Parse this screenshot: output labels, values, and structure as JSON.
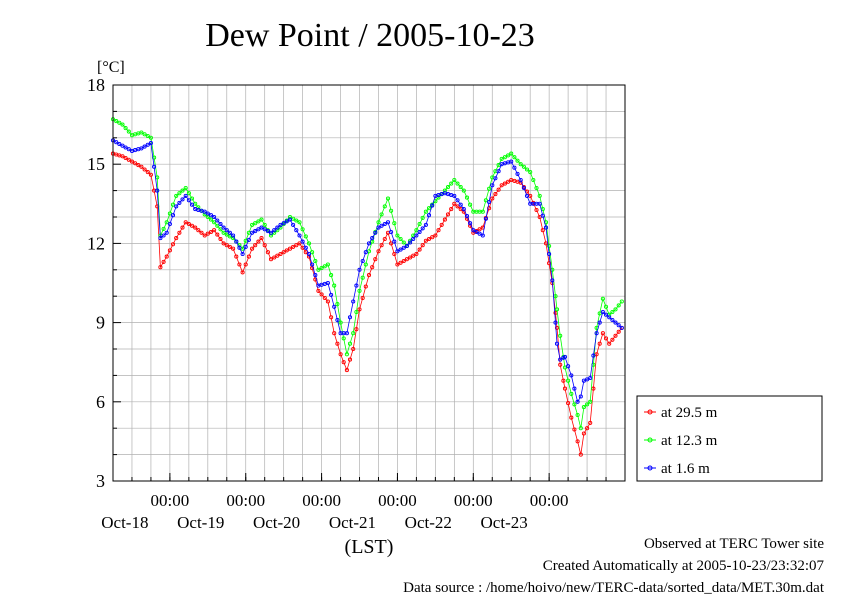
{
  "chart_data": {
    "type": "line",
    "title": "Dew Point / 2005-10-23",
    "ylabel": "[°C]",
    "xlabel": "(LST)",
    "ylim": [
      3,
      18
    ],
    "yticks": [
      3,
      6,
      9,
      12,
      15,
      18
    ],
    "xlim": [
      "2005-10-17T06:00",
      "2005-10-23T24:00"
    ],
    "time_ticks": [
      {
        "time": "2005-10-18T00:00",
        "label": "00:00",
        "day": "Oct-18"
      },
      {
        "time": "2005-10-19T00:00",
        "label": "00:00",
        "day": "Oct-19"
      },
      {
        "time": "2005-10-20T00:00",
        "label": "00:00",
        "day": "Oct-20"
      },
      {
        "time": "2005-10-21T00:00",
        "label": "00:00",
        "day": "Oct-21"
      },
      {
        "time": "2005-10-22T00:00",
        "label": "00:00",
        "day": "Oct-22"
      },
      {
        "time": "2005-10-23T00:00",
        "label": "00:00",
        "day": "Oct-23"
      }
    ],
    "grid": true,
    "legend_position": "right",
    "series": [
      {
        "name": "at 29.5 m",
        "color": "#ff0000",
        "points": [
          [
            "2005-10-17T06:00",
            15.4
          ],
          [
            "2005-10-17T09:00",
            15.3
          ],
          [
            "2005-10-17T12:00",
            15.1
          ],
          [
            "2005-10-17T15:00",
            14.9
          ],
          [
            "2005-10-17T18:00",
            14.6
          ],
          [
            "2005-10-17T20:00",
            13.4
          ],
          [
            "2005-10-17T21:00",
            11.1
          ],
          [
            "2005-10-17T23:00",
            11.5
          ],
          [
            "2005-10-18T02:00",
            12.2
          ],
          [
            "2005-10-18T05:00",
            12.8
          ],
          [
            "2005-10-18T08:00",
            12.6
          ],
          [
            "2005-10-18T11:00",
            12.3
          ],
          [
            "2005-10-18T14:00",
            12.5
          ],
          [
            "2005-10-18T17:00",
            12.0
          ],
          [
            "2005-10-18T20:00",
            11.8
          ],
          [
            "2005-10-18T23:00",
            10.9
          ],
          [
            "2005-10-19T02:00",
            11.8
          ],
          [
            "2005-10-19T05:00",
            12.2
          ],
          [
            "2005-10-19T08:00",
            11.4
          ],
          [
            "2005-10-19T11:00",
            11.6
          ],
          [
            "2005-10-19T14:00",
            11.8
          ],
          [
            "2005-10-19T17:00",
            12.0
          ],
          [
            "2005-10-19T20:00",
            11.5
          ],
          [
            "2005-10-19T23:00",
            10.2
          ],
          [
            "2005-10-20T02:00",
            9.8
          ],
          [
            "2005-10-20T04:00",
            8.6
          ],
          [
            "2005-10-20T06:00",
            7.8
          ],
          [
            "2005-10-20T08:00",
            7.2
          ],
          [
            "2005-10-20T10:00",
            8.0
          ],
          [
            "2005-10-20T12:00",
            9.5
          ],
          [
            "2005-10-20T15:00",
            10.8
          ],
          [
            "2005-10-20T18:00",
            11.7
          ],
          [
            "2005-10-20T21:00",
            12.4
          ],
          [
            "2005-10-21T00:00",
            11.2
          ],
          [
            "2005-10-21T03:00",
            11.4
          ],
          [
            "2005-10-21T06:00",
            11.6
          ],
          [
            "2005-10-21T09:00",
            12.1
          ],
          [
            "2005-10-21T12:00",
            12.3
          ],
          [
            "2005-10-21T15:00",
            12.9
          ],
          [
            "2005-10-21T18:00",
            13.5
          ],
          [
            "2005-10-21T21:00",
            13.2
          ],
          [
            "2005-10-22T00:00",
            12.4
          ],
          [
            "2005-10-22T03:00",
            12.6
          ],
          [
            "2005-10-22T06:00",
            13.7
          ],
          [
            "2005-10-22T09:00",
            14.2
          ],
          [
            "2005-10-22T12:00",
            14.4
          ],
          [
            "2005-10-22T15:00",
            14.3
          ],
          [
            "2005-10-22T18:00",
            13.8
          ],
          [
            "2005-10-22T21:00",
            13.0
          ],
          [
            "2005-10-22T23:00",
            12.0
          ],
          [
            "2005-10-23T01:00",
            10.5
          ],
          [
            "2005-10-23T02:30",
            8.8
          ],
          [
            "2005-10-23T03:30",
            7.4
          ],
          [
            "2005-10-23T05:00",
            6.5
          ],
          [
            "2005-10-23T07:00",
            5.4
          ],
          [
            "2005-10-23T09:00",
            4.5
          ],
          [
            "2005-10-23T10:00",
            4.0
          ],
          [
            "2005-10-23T11:00",
            4.8
          ],
          [
            "2005-10-23T13:00",
            5.2
          ],
          [
            "2005-10-23T15:00",
            7.8
          ],
          [
            "2005-10-23T17:00",
            8.6
          ],
          [
            "2005-10-23T19:00",
            8.2
          ],
          [
            "2005-10-23T21:00",
            8.5
          ],
          [
            "2005-10-23T23:00",
            8.8
          ]
        ]
      },
      {
        "name": "at 12.3 m",
        "color": "#00ff00",
        "points": [
          [
            "2005-10-17T06:00",
            16.7
          ],
          [
            "2005-10-17T09:00",
            16.5
          ],
          [
            "2005-10-17T12:00",
            16.1
          ],
          [
            "2005-10-17T15:00",
            16.2
          ],
          [
            "2005-10-17T18:00",
            16.0
          ],
          [
            "2005-10-17T20:00",
            14.5
          ],
          [
            "2005-10-17T21:00",
            12.3
          ],
          [
            "2005-10-17T23:00",
            12.8
          ],
          [
            "2005-10-18T02:00",
            13.8
          ],
          [
            "2005-10-18T05:00",
            14.1
          ],
          [
            "2005-10-18T08:00",
            13.5
          ],
          [
            "2005-10-18T11:00",
            13.1
          ],
          [
            "2005-10-18T14:00",
            12.8
          ],
          [
            "2005-10-18T17:00",
            12.4
          ],
          [
            "2005-10-18T20:00",
            12.2
          ],
          [
            "2005-10-18T23:00",
            11.8
          ],
          [
            "2005-10-19T02:00",
            12.7
          ],
          [
            "2005-10-19T05:00",
            12.9
          ],
          [
            "2005-10-19T08:00",
            12.3
          ],
          [
            "2005-10-19T11:00",
            12.6
          ],
          [
            "2005-10-19T14:00",
            13.0
          ],
          [
            "2005-10-19T17:00",
            12.8
          ],
          [
            "2005-10-19T20:00",
            12.0
          ],
          [
            "2005-10-19T23:00",
            11.0
          ],
          [
            "2005-10-20T02:00",
            11.2
          ],
          [
            "2005-10-20T04:00",
            10.4
          ],
          [
            "2005-10-20T06:00",
            9.0
          ],
          [
            "2005-10-20T08:00",
            7.8
          ],
          [
            "2005-10-20T10:00",
            8.6
          ],
          [
            "2005-10-20T12:00",
            10.2
          ],
          [
            "2005-10-20T15:00",
            11.7
          ],
          [
            "2005-10-20T18:00",
            12.8
          ],
          [
            "2005-10-20T21:00",
            13.7
          ],
          [
            "2005-10-21T00:00",
            12.3
          ],
          [
            "2005-10-21T03:00",
            11.9
          ],
          [
            "2005-10-21T06:00",
            12.5
          ],
          [
            "2005-10-21T09:00",
            13.2
          ],
          [
            "2005-10-21T12:00",
            13.6
          ],
          [
            "2005-10-21T15:00",
            14.0
          ],
          [
            "2005-10-21T18:00",
            14.4
          ],
          [
            "2005-10-21T21:00",
            14.0
          ],
          [
            "2005-10-22T00:00",
            13.2
          ],
          [
            "2005-10-22T03:00",
            13.2
          ],
          [
            "2005-10-22T06:00",
            14.5
          ],
          [
            "2005-10-22T09:00",
            15.2
          ],
          [
            "2005-10-22T12:00",
            15.4
          ],
          [
            "2005-10-22T15:00",
            15.0
          ],
          [
            "2005-10-22T18:00",
            14.7
          ],
          [
            "2005-10-22T21:00",
            13.8
          ],
          [
            "2005-10-22T23:00",
            12.8
          ],
          [
            "2005-10-23T01:00",
            11.0
          ],
          [
            "2005-10-23T02:30",
            9.5
          ],
          [
            "2005-10-23T03:30",
            8.5
          ],
          [
            "2005-10-23T05:00",
            7.3
          ],
          [
            "2005-10-23T07:00",
            6.3
          ],
          [
            "2005-10-23T09:00",
            5.5
          ],
          [
            "2005-10-23T10:00",
            5.0
          ],
          [
            "2005-10-23T11:00",
            5.8
          ],
          [
            "2005-10-23T13:00",
            6.0
          ],
          [
            "2005-10-23T15:00",
            8.8
          ],
          [
            "2005-10-23T17:00",
            9.9
          ],
          [
            "2005-10-23T19:00",
            9.3
          ],
          [
            "2005-10-23T21:00",
            9.5
          ],
          [
            "2005-10-23T23:00",
            9.8
          ]
        ]
      },
      {
        "name": "at 1.6 m",
        "color": "#0000ff",
        "points": [
          [
            "2005-10-17T06:00",
            15.9
          ],
          [
            "2005-10-17T09:00",
            15.7
          ],
          [
            "2005-10-17T12:00",
            15.5
          ],
          [
            "2005-10-17T15:00",
            15.6
          ],
          [
            "2005-10-17T18:00",
            15.8
          ],
          [
            "2005-10-17T20:00",
            14.0
          ],
          [
            "2005-10-17T21:00",
            12.2
          ],
          [
            "2005-10-17T23:00",
            12.4
          ],
          [
            "2005-10-18T02:00",
            13.4
          ],
          [
            "2005-10-18T05:00",
            13.8
          ],
          [
            "2005-10-18T08:00",
            13.3
          ],
          [
            "2005-10-18T11:00",
            13.2
          ],
          [
            "2005-10-18T14:00",
            13.0
          ],
          [
            "2005-10-18T17:00",
            12.6
          ],
          [
            "2005-10-18T20:00",
            12.3
          ],
          [
            "2005-10-18T23:00",
            11.6
          ],
          [
            "2005-10-19T02:00",
            12.4
          ],
          [
            "2005-10-19T05:00",
            12.6
          ],
          [
            "2005-10-19T08:00",
            12.4
          ],
          [
            "2005-10-19T11:00",
            12.7
          ],
          [
            "2005-10-19T14:00",
            12.9
          ],
          [
            "2005-10-19T17:00",
            12.3
          ],
          [
            "2005-10-19T20:00",
            11.6
          ],
          [
            "2005-10-19T23:00",
            10.4
          ],
          [
            "2005-10-20T02:00",
            10.5
          ],
          [
            "2005-10-20T04:00",
            9.6
          ],
          [
            "2005-10-20T06:00",
            8.6
          ],
          [
            "2005-10-20T08:00",
            8.6
          ],
          [
            "2005-10-20T10:00",
            9.8
          ],
          [
            "2005-10-20T12:00",
            11.0
          ],
          [
            "2005-10-20T15:00",
            12.0
          ],
          [
            "2005-10-20T18:00",
            12.6
          ],
          [
            "2005-10-20T21:00",
            12.8
          ],
          [
            "2005-10-21T00:00",
            11.7
          ],
          [
            "2005-10-21T03:00",
            11.9
          ],
          [
            "2005-10-21T06:00",
            12.3
          ],
          [
            "2005-10-21T09:00",
            12.7
          ],
          [
            "2005-10-21T12:00",
            13.8
          ],
          [
            "2005-10-21T15:00",
            13.9
          ],
          [
            "2005-10-21T18:00",
            13.8
          ],
          [
            "2005-10-21T21:00",
            13.3
          ],
          [
            "2005-10-22T00:00",
            12.5
          ],
          [
            "2005-10-22T03:00",
            12.3
          ],
          [
            "2005-10-22T06:00",
            14.2
          ],
          [
            "2005-10-22T09:00",
            15.0
          ],
          [
            "2005-10-22T12:00",
            15.1
          ],
          [
            "2005-10-22T15:00",
            14.4
          ],
          [
            "2005-10-22T18:00",
            13.5
          ],
          [
            "2005-10-22T21:00",
            13.5
          ],
          [
            "2005-10-22T23:00",
            12.6
          ],
          [
            "2005-10-23T01:00",
            10.6
          ],
          [
            "2005-10-23T02:30",
            8.2
          ],
          [
            "2005-10-23T03:30",
            7.6
          ],
          [
            "2005-10-23T05:00",
            7.7
          ],
          [
            "2005-10-23T07:00",
            7.0
          ],
          [
            "2005-10-23T09:00",
            6.0
          ],
          [
            "2005-10-23T10:00",
            6.2
          ],
          [
            "2005-10-23T11:00",
            6.8
          ],
          [
            "2005-10-23T13:00",
            6.9
          ],
          [
            "2005-10-23T15:00",
            8.6
          ],
          [
            "2005-10-23T17:00",
            9.4
          ],
          [
            "2005-10-23T19:00",
            9.2
          ],
          [
            "2005-10-23T21:00",
            9.0
          ],
          [
            "2005-10-23T23:00",
            8.8
          ]
        ]
      }
    ]
  },
  "footer": {
    "site": "Observed at TERC Tower site",
    "created": "Created Automatically at 2005-10-23/23:32:07",
    "source": "Data source : /home/hoivo/new/TERC-data/sorted_data/MET.30m.dat"
  }
}
